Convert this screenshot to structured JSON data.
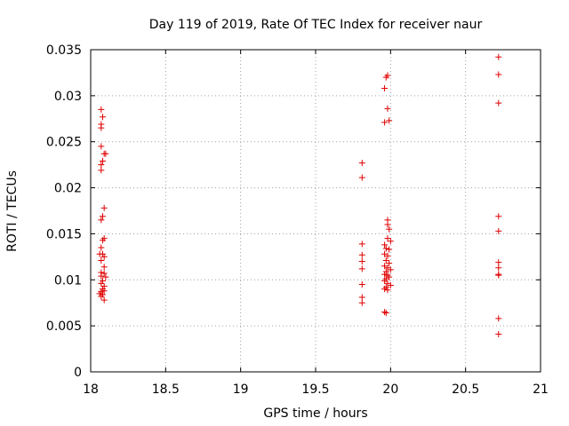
{
  "chart_data": {
    "type": "scatter",
    "title": "Day 119 of 2019, Rate Of TEC Index for receiver naur",
    "xlabel": "GPS time / hours",
    "ylabel": "ROTI / TECUs",
    "xlim": [
      18,
      21
    ],
    "ylim": [
      0,
      0.035
    ],
    "xticks": [
      {
        "value": 18,
        "label": "18"
      },
      {
        "value": 18.5,
        "label": "18.5"
      },
      {
        "value": 19,
        "label": "19"
      },
      {
        "value": 19.5,
        "label": "19.5"
      },
      {
        "value": 20,
        "label": "20"
      },
      {
        "value": 20.5,
        "label": "20.5"
      },
      {
        "value": 21,
        "label": "21"
      }
    ],
    "yticks": [
      {
        "value": 0,
        "label": "0"
      },
      {
        "value": 0.005,
        "label": "0.005"
      },
      {
        "value": 0.01,
        "label": "0.01"
      },
      {
        "value": 0.015,
        "label": "0.015"
      },
      {
        "value": 0.02,
        "label": "0.02"
      },
      {
        "value": 0.025,
        "label": "0.025"
      },
      {
        "value": 0.03,
        "label": "0.03"
      },
      {
        "value": 0.035,
        "label": "0.035"
      }
    ],
    "grid": true,
    "marker": "plus",
    "color": "#e00000",
    "series": [
      {
        "name": "ROTI",
        "points": [
          [
            18.07,
            0.0285
          ],
          [
            18.08,
            0.0277
          ],
          [
            18.07,
            0.0269
          ],
          [
            18.07,
            0.0265
          ],
          [
            18.07,
            0.0245
          ],
          [
            18.09,
            0.0237
          ],
          [
            18.1,
            0.0237
          ],
          [
            18.08,
            0.0229
          ],
          [
            18.07,
            0.0225
          ],
          [
            18.07,
            0.0219
          ],
          [
            18.09,
            0.0178
          ],
          [
            18.08,
            0.0169
          ],
          [
            18.07,
            0.0165
          ],
          [
            18.09,
            0.0145
          ],
          [
            18.08,
            0.0143
          ],
          [
            18.07,
            0.0135
          ],
          [
            18.06,
            0.0128
          ],
          [
            18.08,
            0.0128
          ],
          [
            18.09,
            0.0125
          ],
          [
            18.07,
            0.0121
          ],
          [
            18.09,
            0.0114
          ],
          [
            18.07,
            0.0108
          ],
          [
            18.09,
            0.0107
          ],
          [
            18.07,
            0.0104
          ],
          [
            18.1,
            0.0103
          ],
          [
            18.08,
            0.0099
          ],
          [
            18.07,
            0.0096
          ],
          [
            18.09,
            0.0093
          ],
          [
            18.08,
            0.009
          ],
          [
            18.09,
            0.0088
          ],
          [
            18.07,
            0.0087
          ],
          [
            18.06,
            0.0085
          ],
          [
            18.08,
            0.0084
          ],
          [
            18.07,
            0.0082
          ],
          [
            18.09,
            0.0078
          ],
          [
            19.81,
            0.0227
          ],
          [
            19.81,
            0.0211
          ],
          [
            19.81,
            0.0139
          ],
          [
            19.81,
            0.0127
          ],
          [
            19.81,
            0.012
          ],
          [
            19.81,
            0.0112
          ],
          [
            19.81,
            0.0095
          ],
          [
            19.81,
            0.0081
          ],
          [
            19.81,
            0.0075
          ],
          [
            19.98,
            0.0322
          ],
          [
            19.97,
            0.032
          ],
          [
            19.96,
            0.0308
          ],
          [
            19.98,
            0.0286
          ],
          [
            19.99,
            0.0273
          ],
          [
            19.96,
            0.0271
          ],
          [
            19.98,
            0.0165
          ],
          [
            19.98,
            0.016
          ],
          [
            19.99,
            0.0155
          ],
          [
            19.98,
            0.0145
          ],
          [
            20.0,
            0.0142
          ],
          [
            19.96,
            0.0138
          ],
          [
            19.97,
            0.0134
          ],
          [
            19.99,
            0.0133
          ],
          [
            19.96,
            0.0128
          ],
          [
            19.98,
            0.0126
          ],
          [
            19.97,
            0.0121
          ],
          [
            19.99,
            0.0118
          ],
          [
            19.96,
            0.0115
          ],
          [
            19.98,
            0.0113
          ],
          [
            20.0,
            0.0111
          ],
          [
            19.97,
            0.0109
          ],
          [
            19.96,
            0.0106
          ],
          [
            19.98,
            0.0105
          ],
          [
            19.99,
            0.0103
          ],
          [
            19.97,
            0.0101
          ],
          [
            19.96,
            0.0099
          ],
          [
            19.98,
            0.0096
          ],
          [
            20.0,
            0.0094
          ],
          [
            19.97,
            0.0092
          ],
          [
            19.96,
            0.009
          ],
          [
            19.98,
            0.0089
          ],
          [
            19.96,
            0.0065
          ],
          [
            19.97,
            0.0064
          ],
          [
            20.72,
            0.0342
          ],
          [
            20.72,
            0.0323
          ],
          [
            20.72,
            0.0292
          ],
          [
            20.72,
            0.0169
          ],
          [
            20.72,
            0.0153
          ],
          [
            20.72,
            0.0119
          ],
          [
            20.72,
            0.0113
          ],
          [
            20.72,
            0.0106
          ],
          [
            20.72,
            0.0105
          ],
          [
            20.72,
            0.0058
          ],
          [
            20.72,
            0.0041
          ]
        ]
      }
    ]
  }
}
